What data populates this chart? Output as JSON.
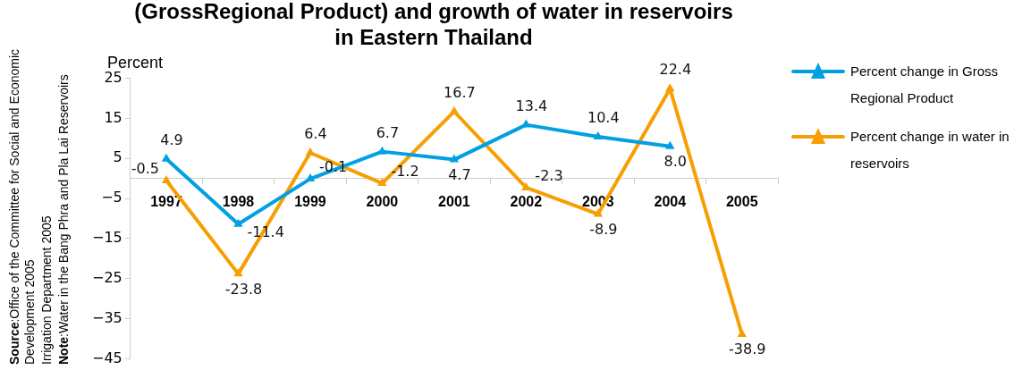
{
  "chart_data": {
    "type": "line",
    "title": "(GrossRegional Product) and growth of water in reservoirs\nin Eastern Thailand",
    "ylabel": "Percent",
    "categories": [
      "1997",
      "1998",
      "1999",
      "2000",
      "2001",
      "2002",
      "2003",
      "2004",
      "2005"
    ],
    "series": [
      {
        "name": "Percent change in Gross Regional Product",
        "color": "#00a0e3",
        "values": [
          4.9,
          -11.4,
          -0.1,
          6.7,
          4.7,
          13.4,
          10.4,
          8.0,
          null
        ],
        "value_labels": [
          "4.9",
          "-11.4",
          "-0.1",
          "6.7",
          "4.7",
          "13.4",
          "10.4",
          "8.0",
          null
        ]
      },
      {
        "name": "Percent change in water in reservoirs",
        "color": "#f79f00",
        "values": [
          -0.5,
          -23.8,
          6.4,
          -1.2,
          16.7,
          -2.3,
          -8.9,
          22.4,
          -38.9
        ],
        "value_labels": [
          "-0.5",
          "-23.8",
          "6.4",
          "-1.2",
          "16.7",
          "-2.3",
          "-8.9",
          "22.4",
          "-38.9"
        ]
      }
    ],
    "ylim": [
      -45,
      25
    ],
    "yticks": [
      -45,
      -35,
      -25,
      -15,
      -5,
      5,
      15,
      25
    ],
    "grid": false,
    "legend": "top right",
    "marker": "triangle",
    "line_style": "solid",
    "annotations": [
      "Source:Office of the Committee for Social and Economic Development 2005",
      "Irrigation Department 2005",
      "Note:Water in the Bang Phra and Pla Lai Reservoirs"
    ]
  }
}
